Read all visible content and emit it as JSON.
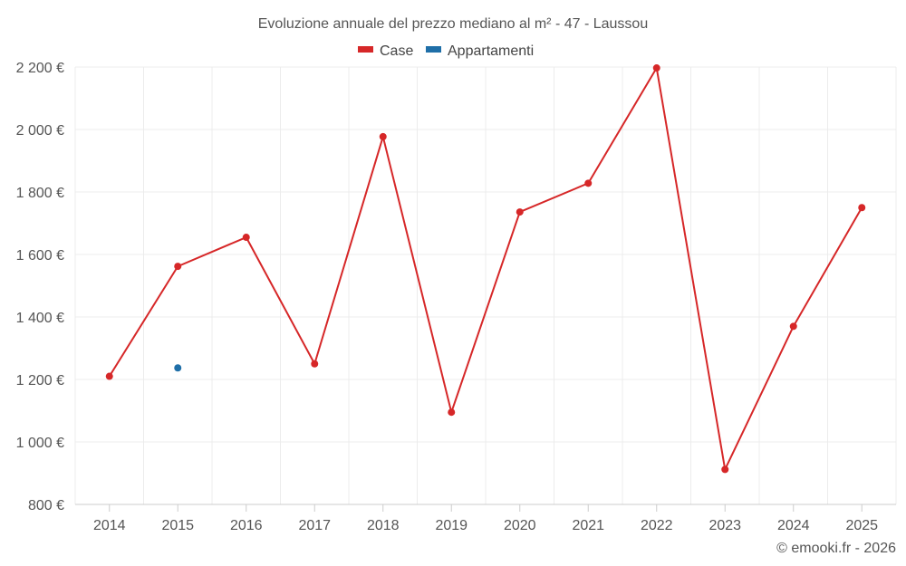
{
  "chart_data": {
    "type": "line",
    "title": "Evoluzione annuale del prezzo mediano al m² - 47 - Laussou",
    "xlabel": "",
    "ylabel": "",
    "categories": [
      "2014",
      "2015",
      "2016",
      "2017",
      "2018",
      "2019",
      "2020",
      "2021",
      "2022",
      "2023",
      "2024",
      "2025"
    ],
    "ylim": [
      800,
      2200
    ],
    "yticks": [
      800,
      1000,
      1200,
      1400,
      1600,
      1800,
      2000,
      2200
    ],
    "ytick_labels": [
      "800 €",
      "1 000 €",
      "1 200 €",
      "1 400 €",
      "1 600 €",
      "1 800 €",
      "2 000 €",
      "2 200 €"
    ],
    "grid": true,
    "legend_position": "top-center",
    "series": [
      {
        "name": "Case",
        "color": "#d62728",
        "values": [
          1210,
          1562,
          1655,
          1250,
          1977,
          1095,
          1736,
          1828,
          2197,
          912,
          1370,
          1750
        ]
      },
      {
        "name": "Appartamenti",
        "color": "#1f6fa8",
        "values": [
          null,
          1237,
          null,
          null,
          null,
          null,
          null,
          null,
          null,
          null,
          null,
          null
        ]
      }
    ],
    "credit": "© emooki.fr - 2026"
  }
}
